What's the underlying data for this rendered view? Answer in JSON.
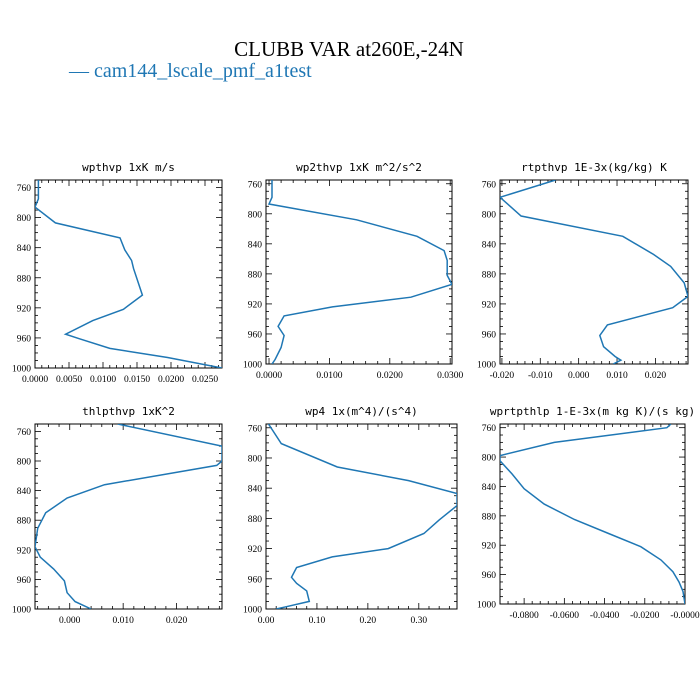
{
  "figure": {
    "title": "CLUBB VAR at260E,-24N",
    "legend": {
      "label": "cam144_lscale_pmf_a1test",
      "color": "#1f77b4"
    }
  },
  "chart_data": [
    {
      "type": "line",
      "title": "wpthvp  1xK m/s",
      "xlim": [
        0,
        0.0275
      ],
      "ylim": [
        750,
        1000
      ],
      "xticks": [
        0,
        0.005,
        0.01,
        0.015,
        0.02,
        0.025
      ],
      "xtick_labels": [
        "0.0000",
        "0.0050",
        "0.0100",
        "0.0150",
        "0.0200",
        "0.0250"
      ],
      "yticks": [
        760,
        800,
        840,
        880,
        920,
        960,
        1000
      ],
      "ytick_labels": [
        "760",
        "800",
        "840",
        "880",
        "920",
        "960",
        "1000"
      ],
      "series": [
        {
          "x": [
            0.0005,
            0.0005,
            0.0,
            0.003,
            0.0125,
            0.0132,
            0.0142,
            0.0145,
            0.0158,
            0.013,
            0.0085,
            0.0045,
            0.0065,
            0.011,
            0.0195,
            0.0275
          ],
          "y": [
            750,
            775,
            786,
            807,
            827,
            843,
            857,
            868,
            903,
            922,
            937,
            955,
            961,
            974,
            986,
            1000
          ]
        }
      ]
    },
    {
      "type": "line",
      "title": "wp2thvp  1xK m^2/s^2",
      "xlim": [
        -0.0005,
        0.0303
      ],
      "ylim": [
        755,
        1000
      ],
      "xticks": [
        0,
        0.01,
        0.02,
        0.03
      ],
      "xtick_labels": [
        "0.0000",
        "0.0100",
        "0.0200",
        "0.0300"
      ],
      "yticks": [
        760,
        800,
        840,
        880,
        920,
        960,
        1000
      ],
      "ytick_labels": [
        "760",
        "800",
        "840",
        "880",
        "920",
        "960",
        "1000"
      ],
      "series": [
        {
          "x": [
            0.0005,
            0.0005,
            0.0,
            0.0145,
            0.0245,
            0.029,
            0.0295,
            0.0295,
            0.0303,
            0.0235,
            0.0105,
            0.0025,
            0.0015,
            0.0025,
            0.002,
            0.001,
            0.0005
          ],
          "y": [
            755,
            778,
            787,
            808,
            830,
            849,
            862,
            882,
            894,
            911,
            924,
            936,
            950,
            962,
            978,
            994,
            1000
          ]
        }
      ]
    },
    {
      "type": "line",
      "title": "rtpthvp  1E-3x(kg/kg) K",
      "xlim": [
        -0.0205,
        0.0285
      ],
      "ylim": [
        755,
        1000
      ],
      "xticks": [
        -0.02,
        -0.01,
        0,
        0.01,
        0.02
      ],
      "xtick_labels": [
        "-0.020",
        "-0.010",
        "0.000",
        "0.010",
        "0.020"
      ],
      "yticks": [
        760,
        800,
        840,
        880,
        920,
        960,
        1000
      ],
      "ytick_labels": [
        "760",
        "800",
        "840",
        "880",
        "920",
        "960",
        "1000"
      ],
      "series": [
        {
          "x": [
            -0.006,
            -0.0205,
            -0.015,
            0.0115,
            0.0195,
            0.024,
            0.0275,
            0.0285,
            0.0245,
            0.0075,
            0.0055,
            0.0065,
            0.0095,
            0.011,
            0.009
          ],
          "y": [
            755,
            778,
            803,
            830,
            854,
            870,
            892,
            910,
            925,
            948,
            962,
            977,
            990,
            995,
            1000
          ]
        }
      ]
    },
    {
      "type": "line",
      "title": "thlpthvp  1xK^2",
      "xlim": [
        -0.0065,
        0.0285
      ],
      "ylim": [
        750,
        1000
      ],
      "xticks": [
        0,
        0.01,
        0.02
      ],
      "xtick_labels": [
        "0.000",
        "0.010",
        "0.020"
      ],
      "yticks": [
        760,
        800,
        840,
        880,
        920,
        960,
        1000
      ],
      "ytick_labels": [
        "760",
        "800",
        "840",
        "880",
        "920",
        "960",
        "1000"
      ],
      "series": [
        {
          "x": [
            0.009,
            0.0285,
            0.0285,
            0.0275,
            0.0065,
            -0.0005,
            -0.0045,
            -0.006,
            -0.0065,
            -0.0055,
            -0.003,
            -0.001,
            -0.0005,
            0.001,
            0.004
          ],
          "y": [
            750,
            780,
            800,
            806,
            832,
            850,
            870,
            891,
            916,
            930,
            946,
            962,
            978,
            990,
            1000
          ]
        }
      ]
    },
    {
      "type": "line",
      "title": "wp4  1x(m^4)/(s^4)",
      "xlim": [
        0,
        0.375
      ],
      "ylim": [
        755,
        1000
      ],
      "xticks": [
        0,
        0.1,
        0.2,
        0.3
      ],
      "xtick_labels": [
        "0.00",
        "0.10",
        "0.20",
        "0.30"
      ],
      "yticks": [
        760,
        800,
        840,
        880,
        920,
        960,
        1000
      ],
      "ytick_labels": [
        "760",
        "800",
        "840",
        "880",
        "920",
        "960",
        "1000"
      ],
      "series": [
        {
          "x": [
            0.005,
            0.03,
            0.14,
            0.28,
            0.375,
            0.375,
            0.34,
            0.31,
            0.24,
            0.13,
            0.06,
            0.05,
            0.06,
            0.08,
            0.085,
            0.04,
            0.02
          ],
          "y": [
            755,
            781,
            812,
            830,
            847,
            863,
            882,
            900,
            920,
            931,
            945,
            958,
            966,
            976,
            990,
            997,
            1000
          ]
        }
      ]
    },
    {
      "type": "line",
      "title": "wprtpthlp  1-E-3x(m kg K)/(s kg)",
      "xlim": [
        -0.092,
        0.0
      ],
      "ylim": [
        755,
        1000
      ],
      "xticks": [
        -0.08,
        -0.06,
        -0.04,
        -0.02,
        0
      ],
      "xtick_labels": [
        "-0.0800",
        "-0.0600",
        "-0.0400",
        "-0.0200",
        "-0.0000"
      ],
      "yticks": [
        760,
        800,
        840,
        880,
        920,
        960,
        1000
      ],
      "ytick_labels": [
        "760",
        "800",
        "840",
        "880",
        "920",
        "960",
        "1000"
      ],
      "series": [
        {
          "x": [
            -0.007,
            -0.009,
            -0.065,
            -0.092,
            -0.092,
            -0.086,
            -0.08,
            -0.07,
            -0.055,
            -0.038,
            -0.022,
            -0.012,
            -0.006,
            -0.003,
            -0.001,
            0.0
          ],
          "y": [
            755,
            760,
            780,
            798,
            805,
            823,
            843,
            864,
            885,
            904,
            922,
            940,
            956,
            970,
            983,
            1000
          ]
        }
      ]
    }
  ]
}
